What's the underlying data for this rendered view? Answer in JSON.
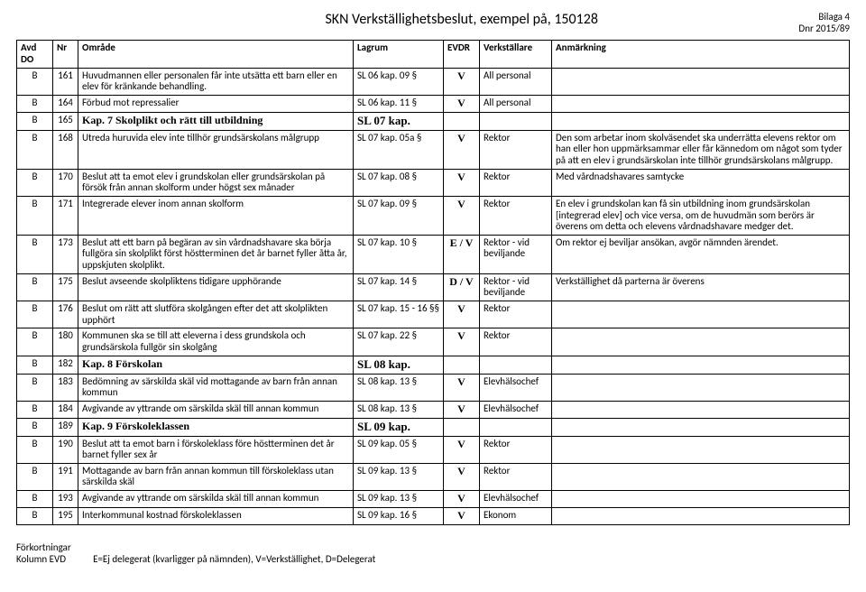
{
  "header": {
    "title": "SKN Verkställighetsbeslut, exempel på, 150128",
    "bilaga_line1": "Bilaga 4",
    "bilaga_line2": "Dnr 2015/89"
  },
  "columns": [
    "Avd DO",
    "Nr",
    "Område",
    "Lagrum",
    "EVDR",
    "Verkställare",
    "Anmärkning"
  ],
  "rows": [
    {
      "avd": "B",
      "nr": "161",
      "omr": "Huvudmannen eller personalen får inte utsätta ett barn eller en elev för kränkande behandling.",
      "lag": "SL 06 kap. 09 §",
      "evdr": "V",
      "ver": "All personal",
      "anm": ""
    },
    {
      "avd": "B",
      "nr": "164",
      "omr": "Förbud mot repressalier",
      "lag": "SL 06 kap. 11 §",
      "evdr": "V",
      "ver": "All personal",
      "anm": ""
    },
    {
      "avd": "B",
      "nr": "165",
      "omr": "Kap. 7 Skolplikt och rätt till utbildning",
      "lag": "SL 07 kap.",
      "evdr": "",
      "ver": "",
      "anm": "",
      "kap": true,
      "serif": true
    },
    {
      "avd": "B",
      "nr": "168",
      "omr": "Utreda huruvida elev inte tillhör grundsärskolans målgrupp",
      "lag": "SL 07 kap. 05a §",
      "evdr": "V",
      "ver": "Rektor",
      "anm": "Den som arbetar inom skolväsendet ska underrätta elevens rektor om han eller hon uppmärksammar eller får kännedom om något som tyder på att en elev i grundsärskolan inte tillhör grundsärskolans målgrupp."
    },
    {
      "avd": "B",
      "nr": "170",
      "omr": "Beslut att ta emot elev i grundskolan eller grundsärskolan på försök från annan skolform under högst sex månader",
      "lag": "SL 07 kap. 08 §",
      "evdr": "V",
      "ver": "Rektor",
      "anm": "Med vårdnadshavares samtycke"
    },
    {
      "avd": "B",
      "nr": "171",
      "omr": "Integrerade elever inom annan skolform",
      "lag": "SL 07 kap. 09 §",
      "evdr": "V",
      "ver": "Rektor",
      "anm": "En elev i grundskolan kan få sin utbildning inom grundsärskolan [integrerad elev] och vice versa, om de huvudmän som berörs är överens om detta och elevens vårdnadshavare medger det."
    },
    {
      "avd": "B",
      "nr": "173",
      "omr": "Beslut att ett barn på begäran av sin vårdnadshavare ska börja fullgöra sin skolplikt först höstterminen det år barnet fyller åtta år, uppskjuten skolplikt.",
      "lag": "SL 07 kap. 10 §",
      "evdr": "E / V",
      "ver": "Rektor - vid beviljande",
      "anm": "Om rektor ej beviljar ansökan, avgör nämnden ärendet."
    },
    {
      "avd": "B",
      "nr": "175",
      "omr": "Beslut avseende skolpliktens tidigare upphörande",
      "lag": "SL 07 kap. 14 §",
      "evdr": "D / V",
      "ver": "Rektor - vid beviljande",
      "anm": "Verkställighet då parterna är överens"
    },
    {
      "avd": "B",
      "nr": "176",
      "omr": "Beslut om rätt att slutföra skolgången efter det att skolplikten upphört",
      "lag": "SL 07 kap. 15 - 16 §§",
      "evdr": "V",
      "ver": "Rektor",
      "anm": ""
    },
    {
      "avd": "B",
      "nr": "180",
      "omr": "Kommunen ska se till att eleverna i dess grundskola och grundsärskola fullgör sin skolgång",
      "lag": "SL 07 kap. 22 §",
      "evdr": "V",
      "ver": "Rektor",
      "anm": ""
    },
    {
      "avd": "B",
      "nr": "182",
      "omr": "Kap. 8 Förskolan",
      "lag": "SL 08 kap.",
      "evdr": "",
      "ver": "",
      "anm": "",
      "kap": true,
      "serif": true
    },
    {
      "avd": "B",
      "nr": "183",
      "omr": "Bedömning av särskilda skäl vid mottagande av barn från annan kommun",
      "lag": "SL 08 kap. 13 §",
      "evdr": "V",
      "ver": "Elevhälsochef",
      "anm": ""
    },
    {
      "avd": "B",
      "nr": "184",
      "omr": "Avgivande av yttrande om särskilda skäl till annan kommun",
      "lag": "SL 08 kap. 13 §",
      "evdr": "V",
      "ver": "Elevhälsochef",
      "anm": ""
    },
    {
      "avd": "B",
      "nr": "189",
      "omr": "Kap. 9 Förskoleklassen",
      "lag": "SL 09 kap.",
      "evdr": "",
      "ver": "",
      "anm": "",
      "kap": true,
      "serif": true
    },
    {
      "avd": "B",
      "nr": "190",
      "omr": "Beslut att ta emot barn i förskoleklass före höstterminen det år barnet fyller sex år",
      "lag": "SL 09 kap. 05 §",
      "evdr": "V",
      "ver": "Rektor",
      "anm": ""
    },
    {
      "avd": "B",
      "nr": "191",
      "omr": "Mottagande av barn från annan kommun till förskoleklass utan särskilda skäl",
      "lag": "SL 09 kap. 13 §",
      "evdr": "V",
      "ver": "Rektor",
      "anm": ""
    },
    {
      "avd": "B",
      "nr": "193",
      "omr": "Avgivande av yttrande om särskilda skäl till annan kommun",
      "lag": "SL 09 kap. 13 §",
      "evdr": "V",
      "ver": "Elevhälsochef",
      "anm": ""
    },
    {
      "avd": "B",
      "nr": "195",
      "omr": "Interkommunal kostnad förskoleklassen",
      "lag": "SL 09 kap. 16 §",
      "evdr": "V",
      "ver": "Ekonom",
      "anm": ""
    }
  ],
  "footer": {
    "line1_left": "Förkortningar",
    "line2_left": "Kolumn EVD",
    "line2_right": "E=Ej delegerat (kvarligger på nämnden), V=Verkställighet, D=Delegerat"
  }
}
